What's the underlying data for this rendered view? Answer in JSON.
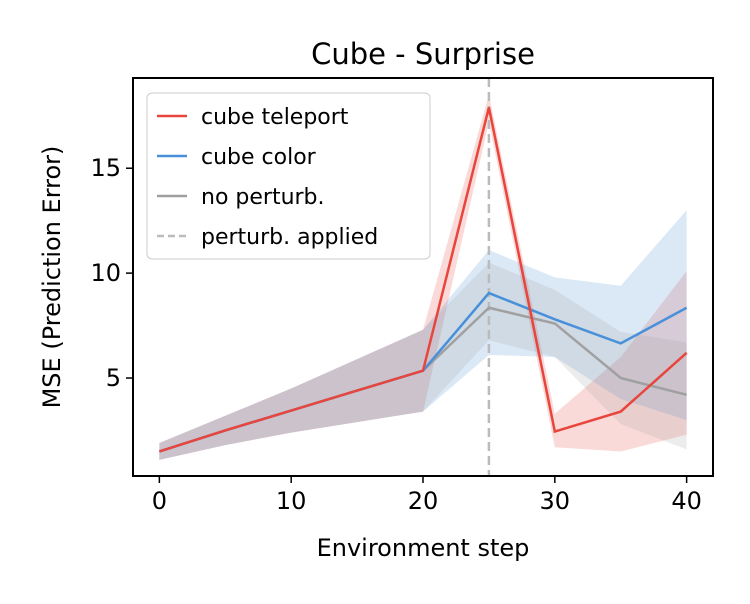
{
  "chart_data": {
    "type": "line",
    "title": "Cube - Surprise",
    "xlabel": "Environment step",
    "ylabel": "MSE (Prediction Error)",
    "xlim": [
      -2,
      42
    ],
    "ylim": [
      0.33,
      19.3
    ],
    "xticks": [
      0,
      10,
      20,
      30,
      40
    ],
    "yticks": [
      5,
      10,
      15
    ],
    "grid": false,
    "legend_position": "top-left",
    "x": [
      0,
      5,
      10,
      15,
      20,
      25,
      30,
      35,
      40
    ],
    "series": [
      {
        "name": "cube teleport",
        "color": "#e8453c",
        "values": [
          1.5,
          2.5,
          3.45,
          4.4,
          5.35,
          17.9,
          2.45,
          3.4,
          6.2
        ],
        "lower": [
          1.1,
          1.8,
          2.4,
          2.9,
          3.4,
          17.2,
          1.7,
          1.5,
          2.3
        ],
        "upper": [
          1.9,
          3.2,
          4.5,
          5.9,
          7.3,
          18.5,
          3.3,
          6.0,
          10.1
        ]
      },
      {
        "name": "cube color",
        "color": "#4a90d9",
        "values": [
          1.5,
          2.5,
          3.45,
          4.4,
          5.35,
          9.05,
          7.8,
          6.65,
          8.35
        ],
        "lower": [
          1.1,
          1.8,
          2.4,
          2.9,
          3.4,
          6.1,
          6.0,
          4.0,
          3.0
        ],
        "upper": [
          1.9,
          3.2,
          4.5,
          5.9,
          7.3,
          11.1,
          9.8,
          9.4,
          13.0
        ]
      },
      {
        "name": "no perturb.",
        "color": "#a0a0a0",
        "values": [
          1.5,
          2.5,
          3.45,
          4.4,
          5.35,
          8.35,
          7.6,
          5.0,
          4.2
        ],
        "lower": [
          1.1,
          1.8,
          2.4,
          2.9,
          3.4,
          6.8,
          6.0,
          2.8,
          1.6
        ],
        "upper": [
          1.9,
          3.2,
          4.5,
          5.9,
          7.3,
          10.5,
          9.2,
          7.2,
          6.7
        ]
      }
    ],
    "vline": {
      "name": "perturb. applied",
      "x": 25,
      "color": "#bbbbbb"
    }
  }
}
